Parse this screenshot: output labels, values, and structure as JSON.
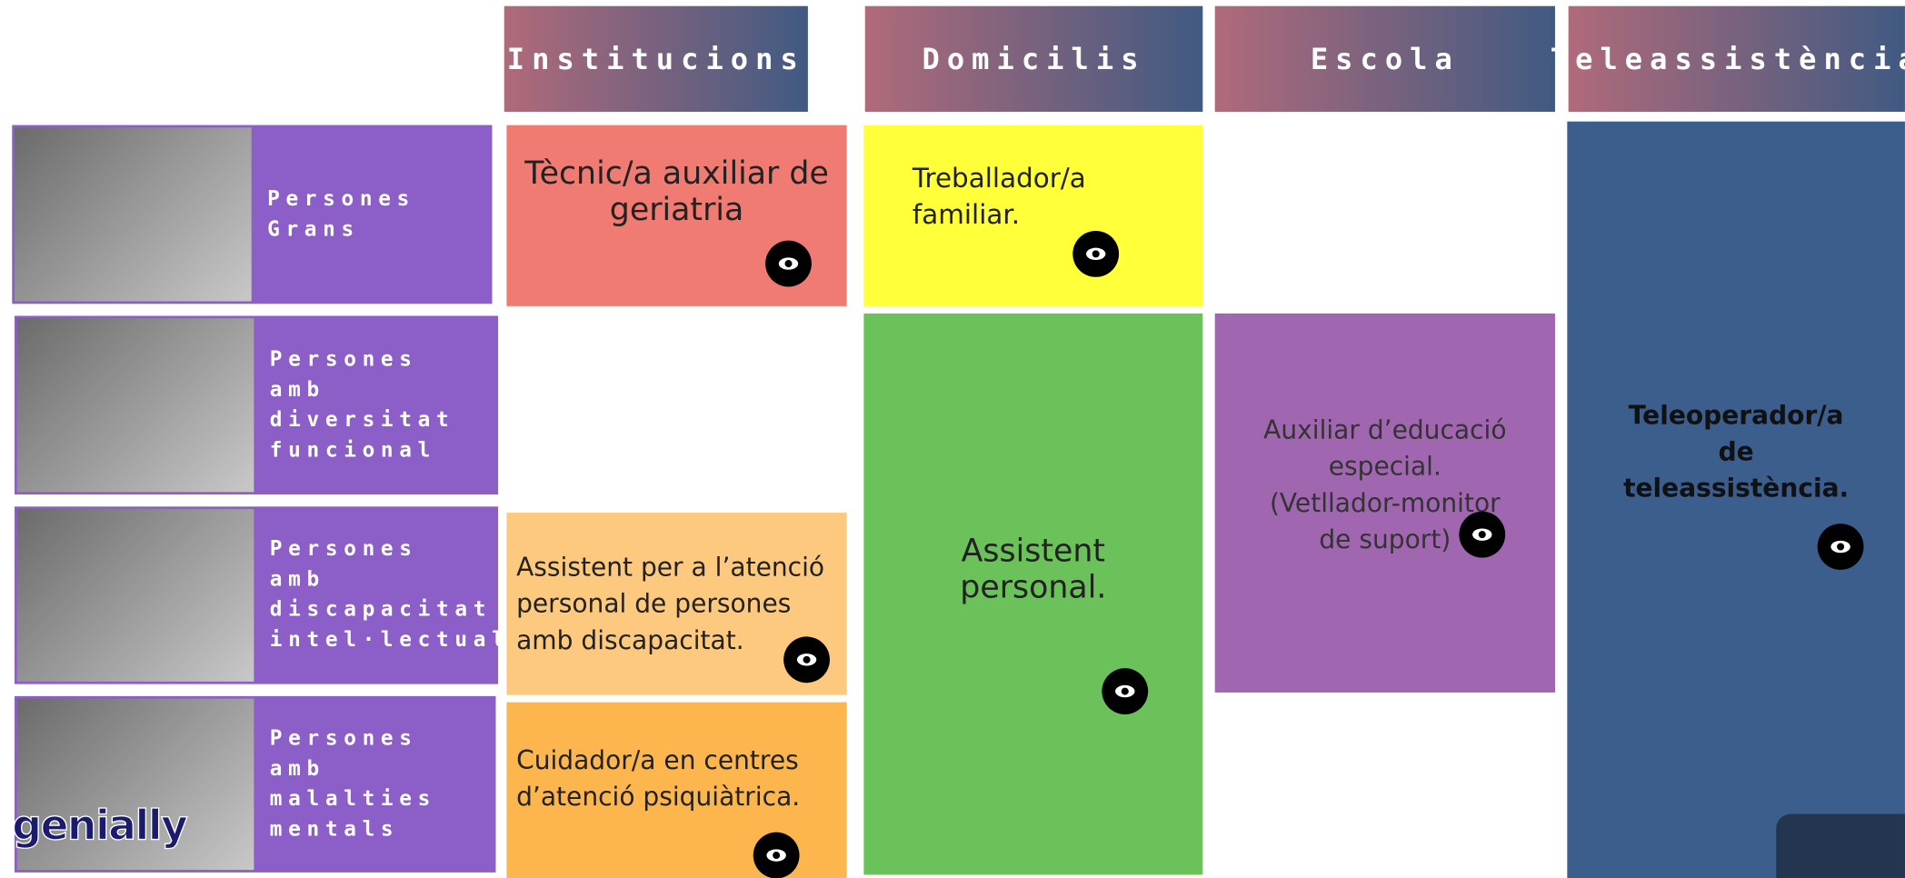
{
  "headers": [
    "Institucions",
    "Domicilis",
    "Escola",
    "Teleassistència"
  ],
  "rows": [
    [
      "Persones",
      "Grans"
    ],
    [
      "Persones",
      "amb",
      "diversitat",
      "funcional"
    ],
    [
      "Persones amb",
      "discapacitat",
      "intel·lectual"
    ],
    [
      "Persones",
      "amb",
      "malalties",
      "mentals"
    ]
  ],
  "cells": [
    {
      "lines": [
        "Tècnic/a auxiliar de",
        "geriatria"
      ]
    },
    {
      "lines": [
        "Treballador/a",
        "familiar."
      ]
    },
    {
      "lines": [
        "Assistent",
        "personal."
      ]
    },
    {
      "lines": [
        "Auxiliar d’educació",
        "especial.",
        "(Vetllador-monitor",
        "de suport)"
      ]
    },
    {
      "lines": [
        "Teleoperador/a",
        "de",
        "teleassistència."
      ]
    },
    {
      "lines": [
        "Assistent per a l’atenció",
        "personal de persones",
        "amb discapacitat."
      ]
    },
    {
      "lines": [
        "Cuidador/a en centres",
        "d’atenció psiquiàtrica."
      ]
    }
  ],
  "logo": "genially"
}
